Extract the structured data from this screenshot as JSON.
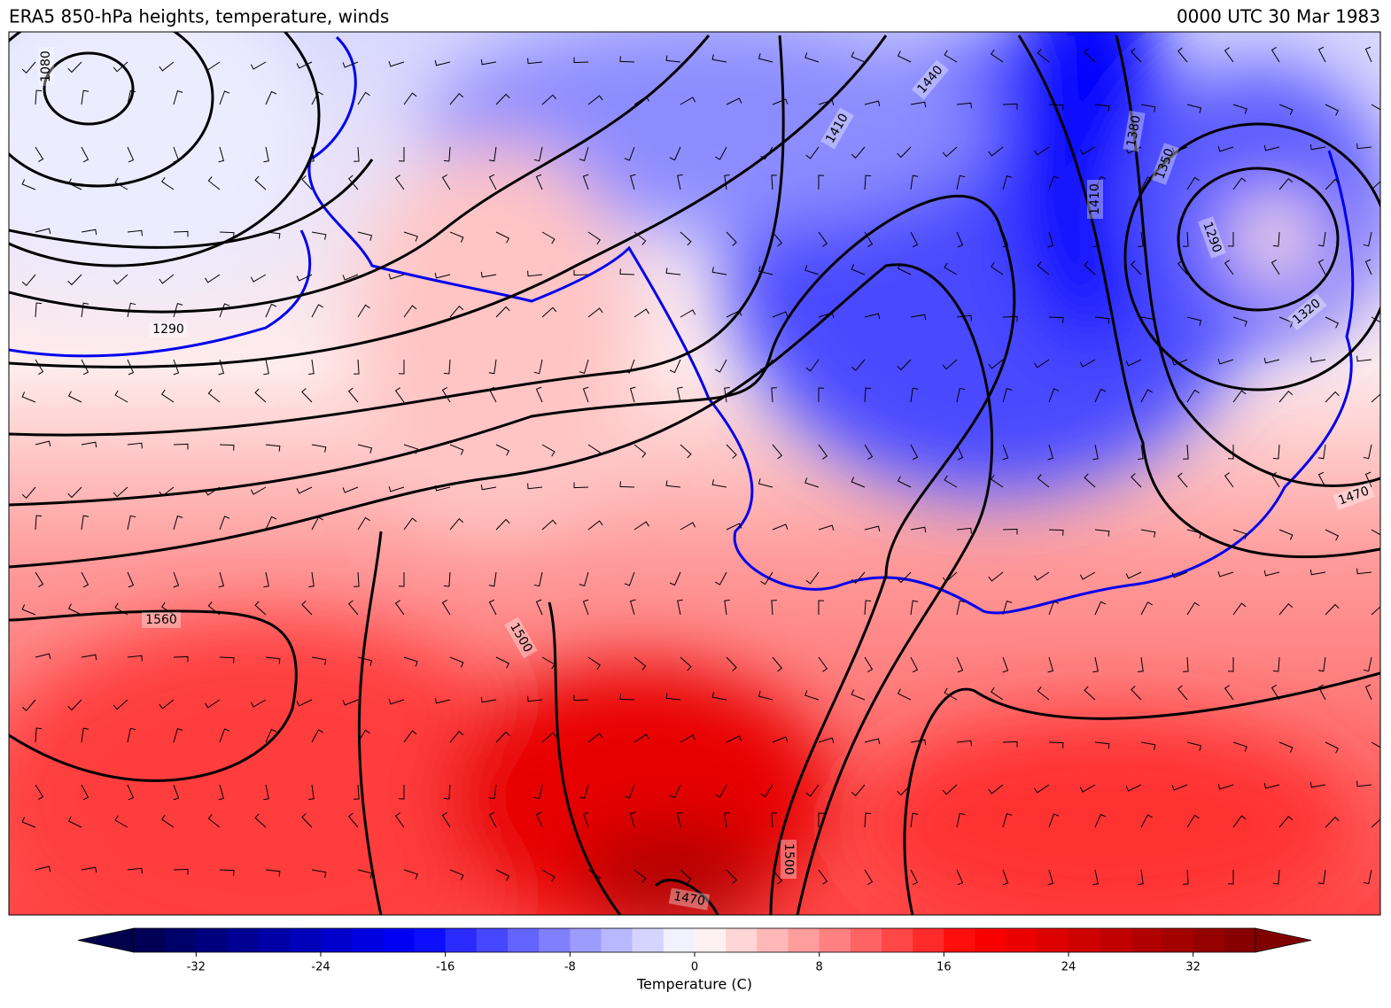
{
  "header": {
    "title": "ERA5 850-hPa heights, temperature, winds",
    "time": "0000 UTC 30 Mar 1983"
  },
  "map": {
    "contour_labels": [
      1080,
      1290,
      1410,
      1440,
      1380,
      1350,
      1410,
      1320,
      1290,
      1470,
      1560,
      1500,
      1500,
      1470
    ]
  },
  "colorbar": {
    "label": "Temperature (C)",
    "lim": [
      -36,
      36
    ],
    "step": 2,
    "ticks": [
      -32,
      -24,
      -16,
      -8,
      0,
      8,
      16,
      24,
      32
    ],
    "colors": [
      "#00004c",
      "#0000ff",
      "#ffffff",
      "#ff0000",
      "#800000"
    ]
  }
}
